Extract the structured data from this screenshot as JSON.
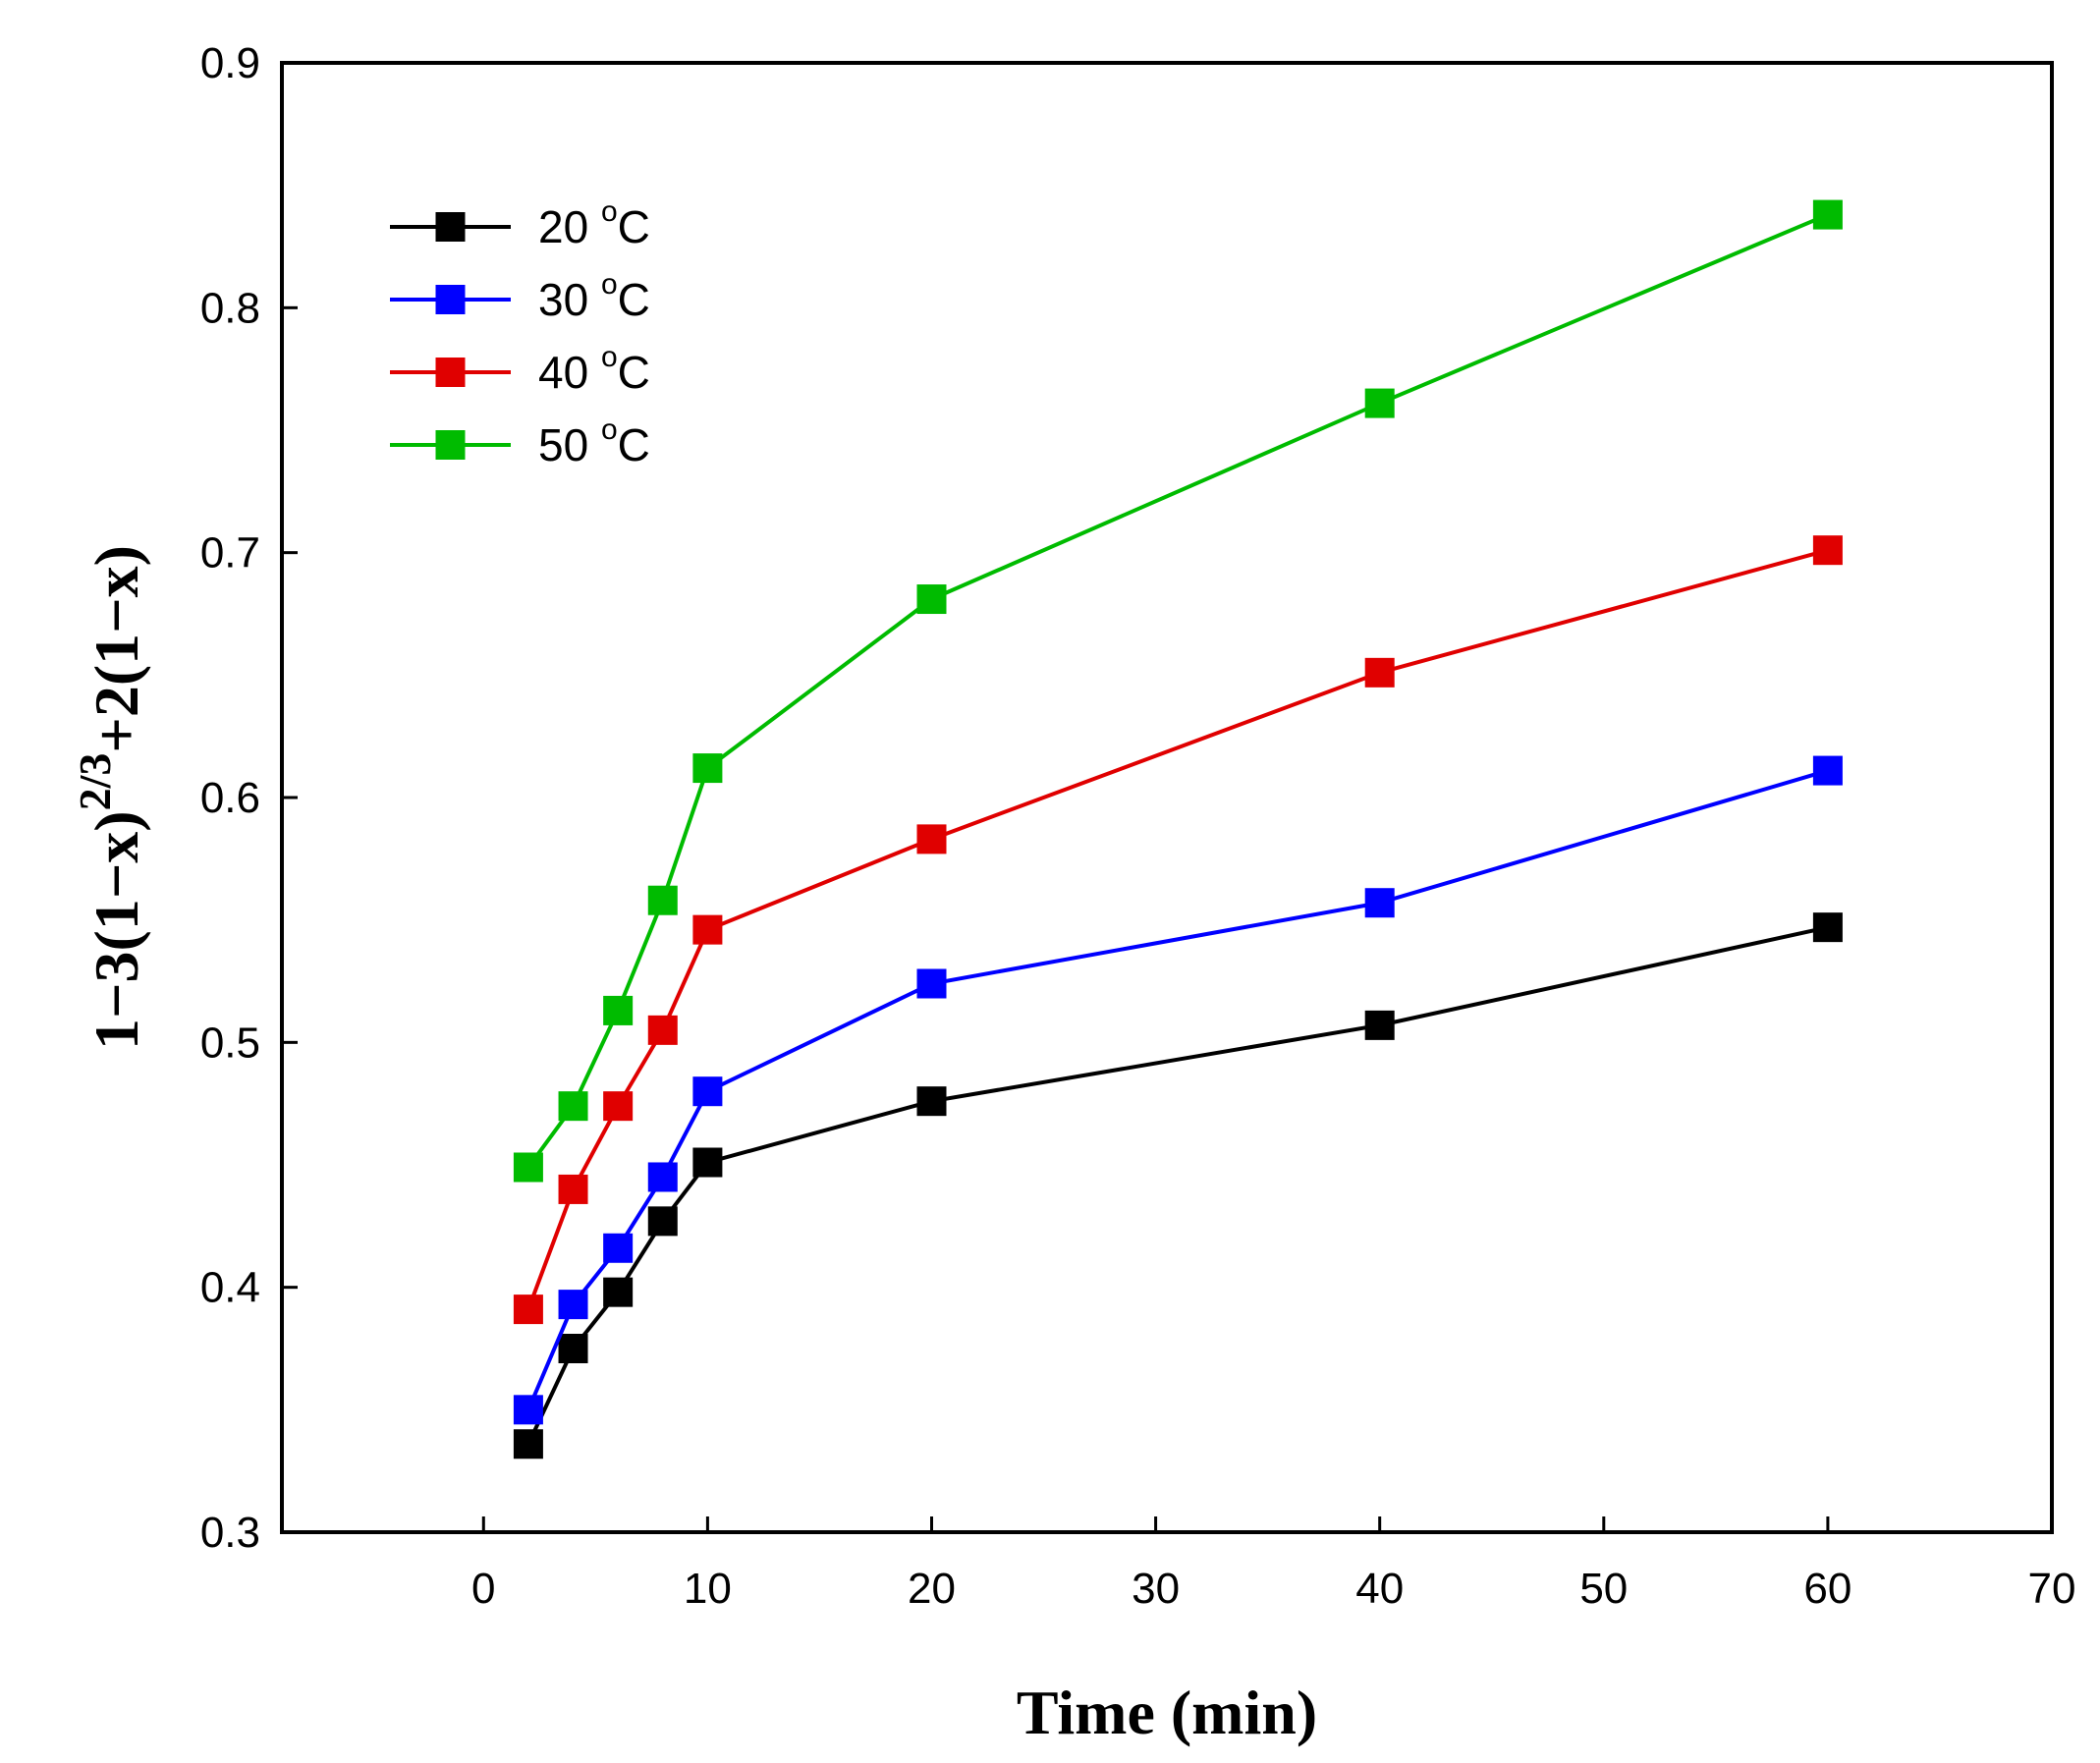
{
  "chart_data": {
    "type": "line",
    "title": "",
    "xlabel": "Time (min)",
    "ylabel": {
      "part1": "1−3(1−x)",
      "exponent": "2/3",
      "part2": "+2(1−x)"
    },
    "xlim": [
      -9,
      70
    ],
    "ylim": [
      0.3,
      0.9
    ],
    "x_ticks": [
      0,
      10,
      20,
      30,
      40,
      50,
      60,
      70
    ],
    "x_tick_labels": [
      "0",
      "10",
      "20",
      "30",
      "40",
      "50",
      "60",
      "70"
    ],
    "y_ticks": [
      0.3,
      0.4,
      0.5,
      0.6,
      0.7,
      0.8,
      0.9
    ],
    "y_tick_labels": [
      "0.3",
      "0.4",
      "0.5",
      "0.6",
      "0.7",
      "0.8",
      "0.9"
    ],
    "x": [
      2,
      4,
      6,
      8,
      10,
      20,
      40,
      60
    ],
    "legend_position": "top-left",
    "grid": false,
    "series": [
      {
        "name": "20 °C",
        "label_main": "20 ",
        "label_sup": "o",
        "label_unit": "C",
        "color": "#000000",
        "values": [
          0.336,
          0.375,
          0.398,
          0.427,
          0.451,
          0.476,
          0.507,
          0.547
        ]
      },
      {
        "name": "30 °C",
        "label_main": "30 ",
        "label_sup": "o",
        "label_unit": "C",
        "color": "#0000ff",
        "values": [
          0.35,
          0.393,
          0.416,
          0.445,
          0.48,
          0.524,
          0.557,
          0.611
        ]
      },
      {
        "name": "40 °C",
        "label_main": "40 ",
        "label_sup": "o",
        "label_unit": "C",
        "color": "#e00000",
        "values": [
          0.391,
          0.44,
          0.474,
          0.505,
          0.546,
          0.583,
          0.651,
          0.701
        ]
      },
      {
        "name": "50 °C",
        "label_main": "50 ",
        "label_sup": "o",
        "label_unit": "C",
        "color": "#00bb00",
        "values": [
          0.449,
          0.474,
          0.513,
          0.558,
          0.612,
          0.681,
          0.761,
          0.838
        ]
      }
    ]
  }
}
